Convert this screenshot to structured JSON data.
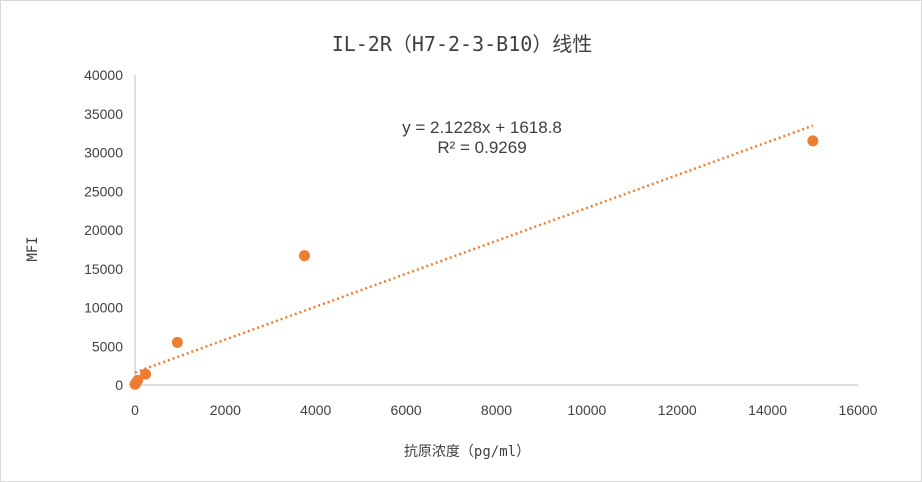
{
  "chart_data": {
    "type": "scatter",
    "title": "IL-2R（H7-2-3-B10）线性",
    "xlabel": "抗原浓度（pg/ml）",
    "ylabel": "MFI",
    "xlim": [
      0,
      16000
    ],
    "ylim": [
      0,
      40000
    ],
    "x_ticks": [
      "0",
      "2000",
      "4000",
      "6000",
      "8000",
      "10000",
      "12000",
      "14000",
      "16000"
    ],
    "y_ticks": [
      "0",
      "5000",
      "10000",
      "15000",
      "20000",
      "25000",
      "30000",
      "35000",
      "40000"
    ],
    "grid": false,
    "legend": "none",
    "marker_color": "#ED7D31",
    "trendline_color": "#ED7D31",
    "series": [
      {
        "x": [
          0,
          15,
          60,
          234,
          938,
          3750,
          15000
        ],
        "y": [
          100,
          200,
          600,
          1400,
          5500,
          16700,
          31500
        ]
      }
    ],
    "trendline": {
      "type": "linear",
      "slope": 2.1228,
      "intercept": 1618.8,
      "x_range": [
        0,
        15000
      ],
      "equation": "y = 2.1228x + 1618.8",
      "r2_label": "R² = 0.9269"
    }
  }
}
